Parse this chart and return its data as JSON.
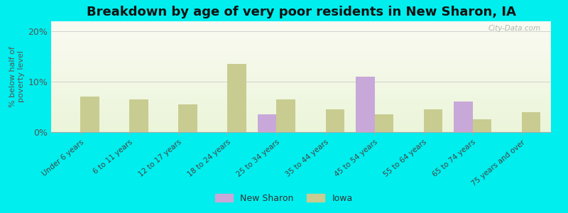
{
  "title": "Breakdown by age of very poor residents in New Sharon, IA",
  "categories": [
    "Under 6 years",
    "6 to 11 years",
    "12 to 17 years",
    "18 to 24 years",
    "25 to 34 years",
    "35 to 44 years",
    "45 to 54 years",
    "55 to 64 years",
    "65 to 74 years",
    "75 years and over"
  ],
  "new_sharon": [
    0,
    0,
    0,
    0,
    3.5,
    0,
    11.0,
    0,
    6.0,
    0
  ],
  "iowa": [
    7.0,
    6.5,
    5.5,
    13.5,
    6.5,
    4.5,
    3.5,
    4.5,
    2.5,
    4.0
  ],
  "new_sharon_color": "#c8a8d8",
  "iowa_color": "#c8cc90",
  "background_color": "#00EEEE",
  "ylim": [
    0,
    22
  ],
  "yticks": [
    0,
    10,
    20
  ],
  "ytick_labels": [
    "0%",
    "10%",
    "20%"
  ],
  "ylabel": "% below half of\npoverty level",
  "title_fontsize": 13,
  "watermark": "City-Data.com"
}
